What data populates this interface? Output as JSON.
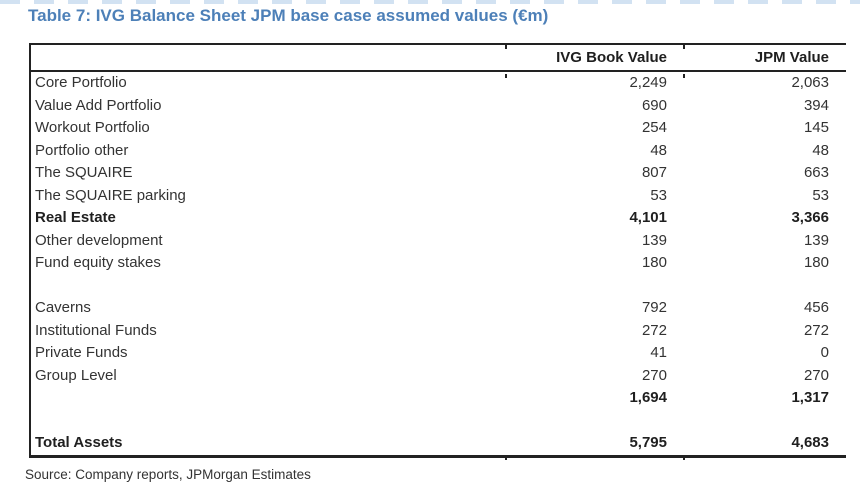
{
  "title": "Table 7: IVG Balance Sheet JPM base case assumed values (€m)",
  "source": "Source: Company reports, JPMorgan Estimates",
  "colors": {
    "title_blue": "#4d80b8",
    "body_text": "#333333",
    "rule_lines": "#222222",
    "background": "#ffffff"
  },
  "table": {
    "columns": [
      "",
      "IVG Book Value",
      "JPM Value"
    ],
    "rows": [
      {
        "label": "Core Portfolio",
        "ivg": "2,249",
        "jpm": "2,063",
        "style": "normal"
      },
      {
        "label": "Value Add Portfolio",
        "ivg": "690",
        "jpm": "394",
        "style": "normal"
      },
      {
        "label": "Workout Portfolio",
        "ivg": "254",
        "jpm": "145",
        "style": "normal"
      },
      {
        "label": "Portfolio other",
        "ivg": "48",
        "jpm": "48",
        "style": "normal"
      },
      {
        "label": "The SQUAIRE",
        "ivg": "807",
        "jpm": "663",
        "style": "normal"
      },
      {
        "label": "The SQUAIRE parking",
        "ivg": "53",
        "jpm": "53",
        "style": "normal"
      },
      {
        "label": "Real Estate",
        "ivg": "4,101",
        "jpm": "3,366",
        "style": "bold"
      },
      {
        "label": "Other development",
        "ivg": "139",
        "jpm": "139",
        "style": "normal"
      },
      {
        "label": "Fund equity stakes",
        "ivg": "180",
        "jpm": "180",
        "style": "normal"
      },
      {
        "label": "",
        "ivg": "",
        "jpm": "",
        "style": "blank"
      },
      {
        "label": "Caverns",
        "ivg": "792",
        "jpm": "456",
        "style": "normal"
      },
      {
        "label": "Institutional Funds",
        "ivg": "272",
        "jpm": "272",
        "style": "normal"
      },
      {
        "label": "Private Funds",
        "ivg": "41",
        "jpm": "0",
        "style": "normal"
      },
      {
        "label": "Group Level",
        "ivg": "270",
        "jpm": "270",
        "style": "normal"
      },
      {
        "label": "",
        "ivg": "1,694",
        "jpm": "1,317",
        "style": "bold"
      },
      {
        "label": "",
        "ivg": "",
        "jpm": "",
        "style": "blank"
      },
      {
        "label": "Total Assets",
        "ivg": "5,795",
        "jpm": "4,683",
        "style": "bold"
      }
    ]
  }
}
